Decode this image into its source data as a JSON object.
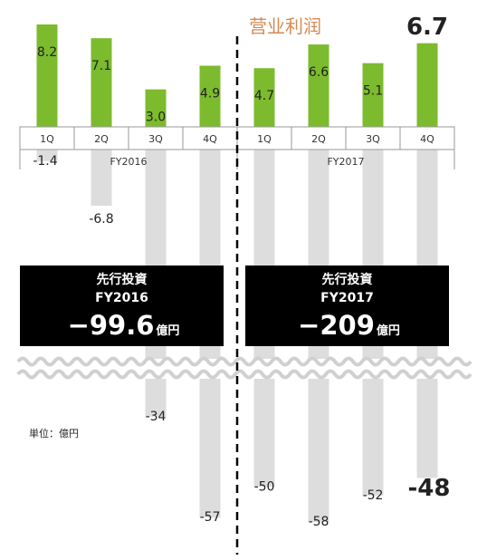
{
  "chart_data": {
    "type": "bar",
    "title": "营业利润",
    "unit_label": "単位：億円",
    "groups": [
      "FY2016",
      "FY2017"
    ],
    "categories": [
      "1Q",
      "2Q",
      "3Q",
      "4Q",
      "1Q",
      "2Q",
      "3Q",
      "4Q"
    ],
    "category_group": [
      "FY2016",
      "FY2016",
      "FY2016",
      "FY2016",
      "FY2017",
      "FY2017",
      "FY2017",
      "FY2017"
    ],
    "series": [
      {
        "values": [
          8.2,
          7.1,
          3.0,
          4.9,
          4.7,
          6.6,
          5.1,
          6.7
        ],
        "labels": [
          "8.2",
          "7.1",
          "3.0",
          "4.9",
          "4.7",
          "6.6",
          "5.1",
          "6.7"
        ],
        "color": "#7cbb2d"
      },
      {
        "values": [
          -1.4,
          -6.8,
          -34,
          -57,
          -50,
          -58,
          -52,
          -48
        ],
        "labels": [
          "-1.4",
          "-6.8",
          "-34",
          "-57",
          "-50",
          "-58",
          "-52",
          "-48"
        ],
        "color": "#dddddd"
      }
    ],
    "axis_break": true,
    "highlight_index": 7,
    "annotations": [
      {
        "heading": "先行投資",
        "period": "FY2016",
        "amount": "−99.6",
        "unit": "億円"
      },
      {
        "heading": "先行投資",
        "period": "FY2017",
        "amount": "−209",
        "unit": "億円"
      }
    ]
  }
}
